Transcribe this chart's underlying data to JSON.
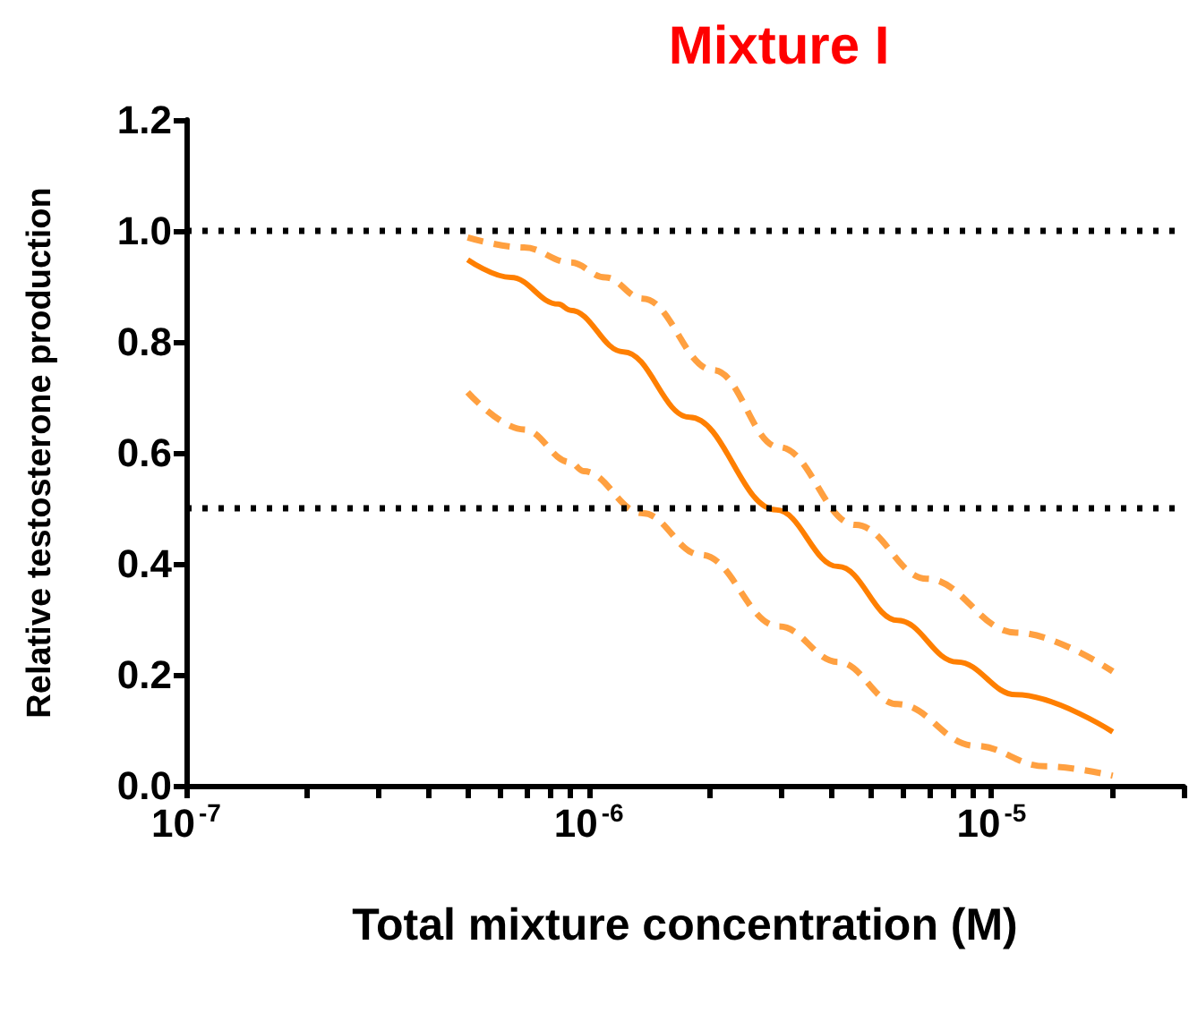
{
  "chart_data": {
    "type": "line",
    "title": "Mixture I",
    "xlabel": "Total mixture concentration (M)",
    "ylabel": "Relative testosterone production",
    "log": "x",
    "xlim": [
      1e-07,
      3e-05
    ],
    "xticks": [
      {
        "value": 1e-07,
        "label": "10$^{-7}$"
      },
      {
        "value": 2e-07,
        "label": null
      },
      {
        "value": 3e-07,
        "label": null
      },
      {
        "value": 4e-07,
        "label": null
      },
      {
        "value": 5e-07,
        "label": null
      },
      {
        "value": 6e-07,
        "label": null
      },
      {
        "value": 7e-07,
        "label": null
      },
      {
        "value": 8e-07,
        "label": null
      },
      {
        "value": 9e-07,
        "label": null
      },
      {
        "value": 1e-06,
        "label": "10$^{-6}$"
      },
      {
        "value": 2e-06,
        "label": null
      },
      {
        "value": 3e-06,
        "label": null
      },
      {
        "value": 4e-06,
        "label": null
      },
      {
        "value": 5e-06,
        "label": null
      },
      {
        "value": 6e-06,
        "label": null
      },
      {
        "value": 7e-06,
        "label": null
      },
      {
        "value": 8e-06,
        "label": null
      },
      {
        "value": 9e-06,
        "label": null
      },
      {
        "value": 1e-05,
        "label": "10$^{-5}$"
      },
      {
        "value": 2e-05,
        "label": null
      },
      {
        "value": 3e-05,
        "label": null
      }
    ],
    "ylim": [
      0,
      1.2
    ],
    "yticks": [
      {
        "value": 0,
        "label": "0.0"
      },
      0.2,
      0.4,
      0.6,
      0.8,
      {
        "value": 1,
        "label": "1.0"
      },
      1.2
    ],
    "marker": "none",
    "grid": false,
    "ref_lines": [
      {
        "axis": "y",
        "value": 1,
        "color": "#000000",
        "line_style": "dotted"
      },
      {
        "axis": "y",
        "value": 0.5,
        "color": "#000000",
        "line_style": "dotted"
      }
    ],
    "series": [
      {
        "color": "#ff7f00",
        "line_style": "solid",
        "x": [
          5e-07,
          6.4e-07,
          8.4e-07,
          9e-07,
          1.22e-06,
          1.78e-06,
          2.92e-06,
          4.16e-06,
          5.85e-06,
          8.22e-06,
          1.15e-05,
          2e-05
        ],
        "values": [
          0.948,
          0.916,
          0.868,
          0.857,
          0.782,
          0.664,
          0.497,
          0.395,
          0.298,
          0.223,
          0.164,
          0.097
        ]
      },
      {
        "color": "#ffa040",
        "line_style": "dashed",
        "x": [
          5e-07,
          6.9e-07,
          9e-07,
          1.1e-06,
          1.36e-06,
          2.04e-06,
          2.97e-06,
          4.6e-06,
          6.9e-06,
          1.15e-05,
          2e-05
        ],
        "values": [
          0.988,
          0.97,
          0.943,
          0.916,
          0.878,
          0.749,
          0.61,
          0.47,
          0.373,
          0.276,
          0.206
        ]
      },
      {
        "color": "#ffa040",
        "line_style": "dashed",
        "x": [
          5e-07,
          6.9e-07,
          9e-07,
          9.7e-07,
          1.36e-06,
          1.9e-06,
          2.97e-06,
          4.16e-06,
          5.85e-06,
          9.1e-06,
          1.36e-05,
          2e-05
        ],
        "values": [
          0.709,
          0.642,
          0.583,
          0.567,
          0.491,
          0.416,
          0.287,
          0.223,
          0.147,
          0.072,
          0.035,
          0.018
        ]
      }
    ]
  }
}
